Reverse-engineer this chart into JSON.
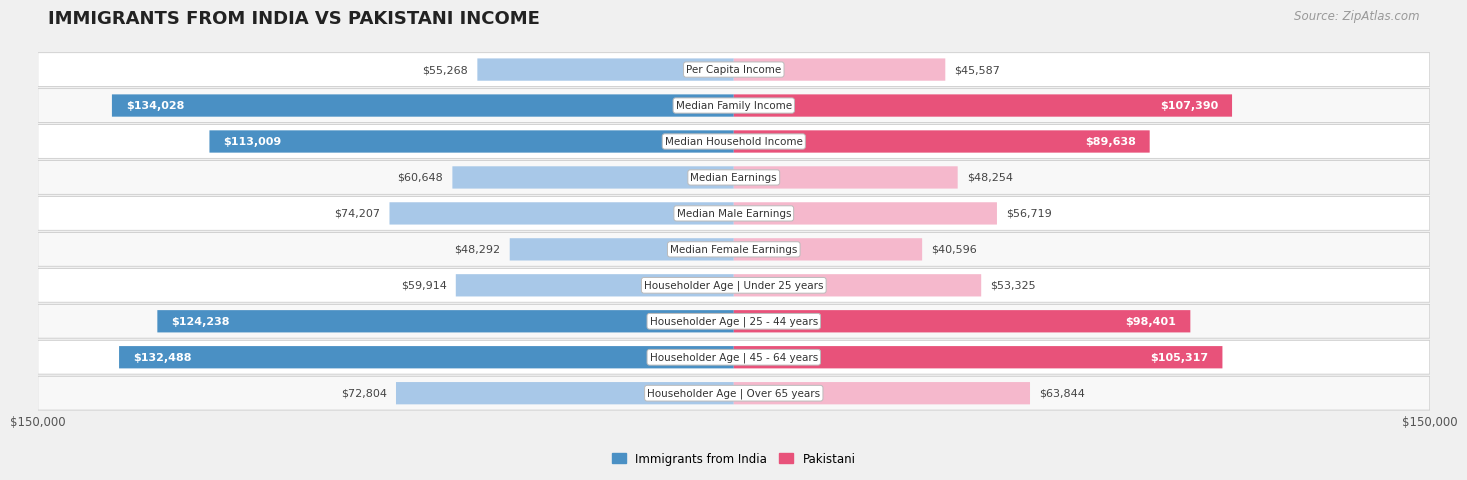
{
  "title": "IMMIGRANTS FROM INDIA VS PAKISTANI INCOME",
  "source": "Source: ZipAtlas.com",
  "categories": [
    "Per Capita Income",
    "Median Family Income",
    "Median Household Income",
    "Median Earnings",
    "Median Male Earnings",
    "Median Female Earnings",
    "Householder Age | Under 25 years",
    "Householder Age | 25 - 44 years",
    "Householder Age | 45 - 64 years",
    "Householder Age | Over 65 years"
  ],
  "india_values": [
    55268,
    134028,
    113009,
    60648,
    74207,
    48292,
    59914,
    124238,
    132488,
    72804
  ],
  "pakistan_values": [
    45587,
    107390,
    89638,
    48254,
    56719,
    40596,
    53325,
    98401,
    105317,
    63844
  ],
  "india_color_light": "#a8c8e8",
  "india_color_dark": "#4a90c4",
  "pakistan_color_light": "#f5b8cc",
  "pakistan_color_dark": "#e8527a",
  "max_value": 150000,
  "x_label_left": "$150,000",
  "x_label_right": "$150,000",
  "legend_india": "Immigrants from India",
  "legend_pakistan": "Pakistani",
  "background_color": "#f0f0f0",
  "row_bg_even": "#f8f8f8",
  "row_bg_odd": "#ffffff",
  "title_fontsize": 13,
  "source_fontsize": 8.5,
  "bar_label_fontsize": 8,
  "category_fontsize": 7.5,
  "india_dark_threshold": 80000,
  "pakistan_dark_threshold": 80000
}
